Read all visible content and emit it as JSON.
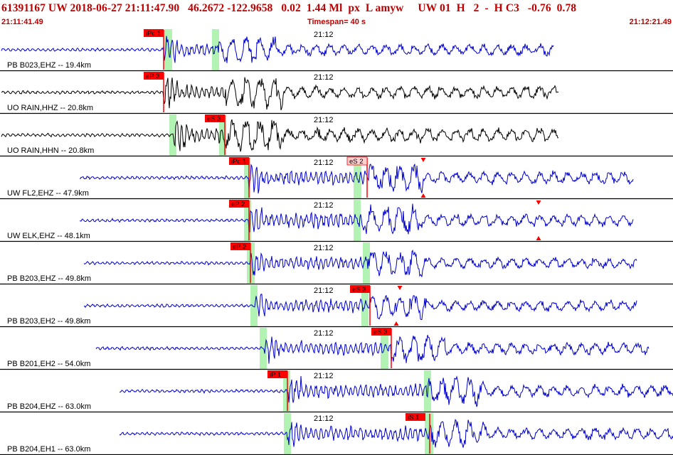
{
  "header": {
    "title": "61391167 UW 2018-06-27 21:11:47.90   46.2672 -122.9658   0.02  1.44 Ml  px  L amyw     UW 01  H   2  -  H C3   -0.76  0.78",
    "start_time": "21:11:41.49",
    "timespan": "Timespan=  40 s",
    "end_time": "21:12:21.49"
  },
  "colors": {
    "waveform": "#0000cc",
    "black_trace": "#000000",
    "pick": "#ff0000",
    "pick_window": "#b2f2b2",
    "header_text": "#c00000",
    "pick_label_active": "#ff0000",
    "pick_label_outline": "#ffd0d0"
  },
  "minute_marker_label": "21:12",
  "traces": [
    {
      "label": "PB B023,EHZ -- 19.4km",
      "color": "blue",
      "picks": [
        {
          "label": "iPc 1",
          "style": "solid"
        },
        {
          "label": "",
          "style": "window"
        }
      ]
    },
    {
      "label": "UO RAIN,HHZ -- 20.8km",
      "color": "black",
      "picks": [
        {
          "label": "eP 3",
          "style": "solid"
        }
      ]
    },
    {
      "label": "UO RAIN,HHN -- 20.8km",
      "color": "black",
      "picks": [
        {
          "label": "eS 3",
          "style": "solid"
        }
      ]
    },
    {
      "label": "UW FL2,EHZ -- 47.9km",
      "color": "blue",
      "picks": [
        {
          "label": "iPc 1",
          "style": "solid"
        },
        {
          "label": "eS 2",
          "style": "outline"
        }
      ]
    },
    {
      "label": "UW ELK,EHZ -- 48.1km",
      "color": "blue",
      "picks": [
        {
          "label": "eP 2",
          "style": "solid"
        }
      ]
    },
    {
      "label": "PB B203,EHZ -- 49.8km",
      "color": "blue",
      "picks": [
        {
          "label": "eP 2",
          "style": "solid"
        }
      ]
    },
    {
      "label": "PB B203,EH2 -- 49.8km",
      "color": "blue",
      "picks": [
        {
          "label": "eS 3",
          "style": "solid"
        }
      ]
    },
    {
      "label": "PB B201,EH2 -- 54.0km",
      "color": "blue",
      "picks": [
        {
          "label": "eS 3",
          "style": "solid"
        }
      ]
    },
    {
      "label": "PB B204,EHZ -- 63.0km",
      "color": "blue",
      "picks": [
        {
          "label": "iP 1",
          "style": "solid"
        }
      ]
    },
    {
      "label": "PB B204,EH1 -- 63.0km",
      "color": "blue",
      "picks": [
        {
          "label": "iS 1",
          "style": "solid"
        }
      ]
    }
  ]
}
